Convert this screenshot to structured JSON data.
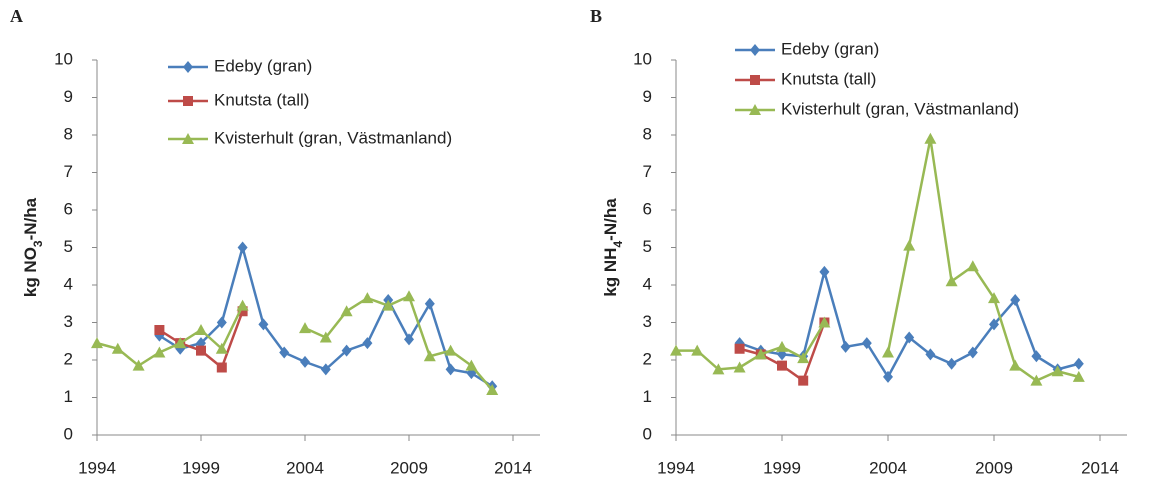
{
  "chart_data": [
    {
      "type": "line",
      "panel_label": "A",
      "ylabel": [
        "kg NO",
        "3",
        "-N/ha"
      ],
      "x": [
        1994,
        1995,
        1996,
        1997,
        1998,
        1999,
        2000,
        2001,
        2002,
        2003,
        2004,
        2005,
        2006,
        2007,
        2008,
        2009,
        2010,
        2011,
        2012,
        2013
      ],
      "xlim": [
        1994,
        2014
      ],
      "xticks": [
        1994,
        1999,
        2004,
        2009,
        2014
      ],
      "ylim": [
        0,
        10
      ],
      "yticks": [
        0,
        1,
        2,
        3,
        4,
        5,
        6,
        7,
        8,
        9,
        10
      ],
      "grid": false,
      "series": [
        {
          "name": "Edeby (gran)",
          "color": "#4a7ebb",
          "marker": "diamond",
          "values": [
            null,
            null,
            null,
            2.65,
            2.3,
            2.45,
            3.0,
            5.0,
            2.95,
            2.2,
            1.95,
            1.75,
            2.25,
            2.45,
            3.6,
            2.55,
            3.5,
            1.75,
            1.65,
            1.3
          ]
        },
        {
          "name": "Knutsta (tall)",
          "color": "#be4b48",
          "marker": "square",
          "values": [
            null,
            null,
            null,
            2.8,
            2.45,
            2.25,
            1.8,
            3.3,
            null,
            null,
            null,
            null,
            null,
            null,
            null,
            null,
            null,
            null,
            null,
            null
          ]
        },
        {
          "name": "Kvisterhult (gran, Västmanland)",
          "color": "#98b954",
          "marker": "triangle",
          "values": [
            2.45,
            2.3,
            1.85,
            2.2,
            2.45,
            2.8,
            2.3,
            3.45,
            null,
            null,
            2.85,
            2.6,
            3.3,
            3.65,
            3.45,
            3.7,
            2.1,
            2.25,
            1.85,
            1.2
          ]
        }
      ]
    },
    {
      "type": "line",
      "panel_label": "B",
      "ylabel": [
        "kg NH",
        "4",
        "-N/ha"
      ],
      "x": [
        1994,
        1995,
        1996,
        1997,
        1998,
        1999,
        2000,
        2001,
        2002,
        2003,
        2004,
        2005,
        2006,
        2007,
        2008,
        2009,
        2010,
        2011,
        2012,
        2013
      ],
      "xlim": [
        1994,
        2014
      ],
      "xticks": [
        1994,
        1999,
        2004,
        2009,
        2014
      ],
      "ylim": [
        0,
        10
      ],
      "yticks": [
        0,
        1,
        2,
        3,
        4,
        5,
        6,
        7,
        8,
        9,
        10
      ],
      "grid": false,
      "series": [
        {
          "name": "Edeby (gran)",
          "color": "#4a7ebb",
          "marker": "diamond",
          "values": [
            null,
            null,
            null,
            2.45,
            2.25,
            2.15,
            2.1,
            4.35,
            2.35,
            2.45,
            1.55,
            2.6,
            2.15,
            1.9,
            2.2,
            2.95,
            3.6,
            2.1,
            1.75,
            1.9
          ]
        },
        {
          "name": "Knutsta (tall)",
          "color": "#be4b48",
          "marker": "square",
          "values": [
            null,
            null,
            null,
            2.3,
            2.15,
            1.85,
            1.45,
            3.0,
            null,
            null,
            null,
            null,
            null,
            null,
            null,
            null,
            null,
            null,
            null,
            null
          ]
        },
        {
          "name": "Kvisterhult (gran, Västmanland)",
          "color": "#98b954",
          "marker": "triangle",
          "values": [
            2.25,
            2.25,
            1.75,
            1.8,
            2.15,
            2.35,
            2.05,
            3.0,
            null,
            null,
            2.2,
            5.05,
            7.9,
            4.1,
            4.5,
            3.65,
            1.85,
            1.45,
            1.7,
            1.55
          ]
        }
      ]
    }
  ]
}
